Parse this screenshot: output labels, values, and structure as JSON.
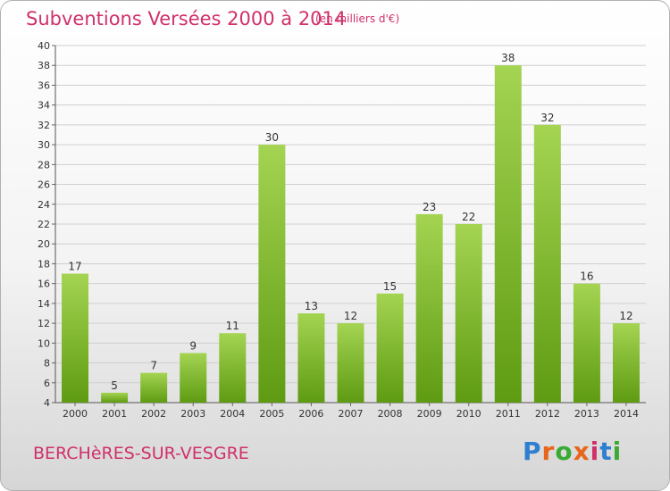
{
  "header": {
    "title": "Subventions Versées 2000 à 2014",
    "unit": "(en milliers d'€)"
  },
  "footer": {
    "commune": "BERCHèRES-SUR-VESGRE",
    "logo_text": "Proxiti"
  },
  "colors": {
    "title": "#d0306a",
    "bar_top": "#a4d452",
    "bar_bottom": "#5e9b12",
    "logo": [
      "#2f7fd1",
      "#e8661c",
      "#3aaa34",
      "#e8661c",
      "#d0306a",
      "#2f7fd1",
      "#3aaa34"
    ]
  },
  "chart_data": {
    "type": "bar",
    "title": "Subventions Versées 2000 à 2014",
    "subtitle": "(en milliers d'€)",
    "categories": [
      "2000",
      "2001",
      "2002",
      "2003",
      "2004",
      "2005",
      "2006",
      "2007",
      "2008",
      "2009",
      "2010",
      "2011",
      "2012",
      "2013",
      "2014"
    ],
    "values": [
      17,
      5,
      7,
      9,
      11,
      30,
      13,
      12,
      15,
      23,
      22,
      38,
      32,
      16,
      12
    ],
    "ylim": [
      4,
      40
    ],
    "yticks": [
      4,
      6,
      8,
      10,
      12,
      14,
      16,
      18,
      20,
      22,
      24,
      26,
      28,
      30,
      32,
      34,
      36,
      38,
      40
    ],
    "grid": true,
    "legend": "none"
  }
}
